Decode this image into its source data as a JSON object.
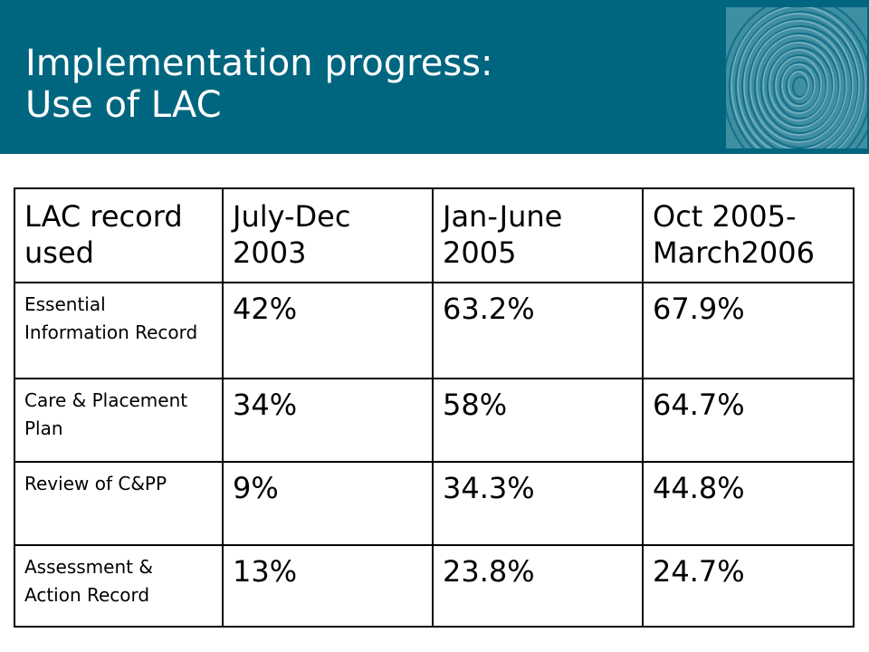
{
  "slide": {
    "title_line1": "Implementation progress:",
    "title_line2": "Use of LAC",
    "colors": {
      "header_band": "#006680",
      "title_text": "#ffffff",
      "table_border": "#000000"
    },
    "decoration_icon": "fingerprint-icon"
  },
  "table": {
    "headers": [
      "LAC record used",
      "July-Dec 2003",
      "Jan-June 2005",
      "Oct 2005-March2006"
    ],
    "rows": [
      {
        "label": "Essential Information Record",
        "values": [
          "42%",
          "63.2%",
          "67.9%"
        ]
      },
      {
        "label": "Care & Placement Plan",
        "values": [
          "34%",
          "58%",
          "64.7%"
        ]
      },
      {
        "label": "Review of C&PP",
        "values": [
          "9%",
          "34.3%",
          "44.8%"
        ]
      },
      {
        "label": "Assessment & Action Record",
        "values": [
          "13%",
          "23.8%",
          "24.7%"
        ]
      }
    ]
  }
}
